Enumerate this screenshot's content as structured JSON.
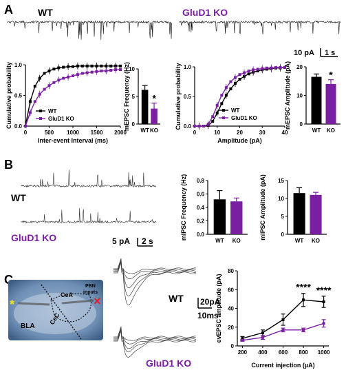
{
  "panels": {
    "A": "A",
    "B": "B",
    "C": "C"
  },
  "colors": {
    "wt": "#000000",
    "ko": "#7b1fa2",
    "trace": "#444444",
    "slice_bg": "#5d7fa8"
  },
  "groups": {
    "wt": "WT",
    "ko": "GluD1 KO"
  },
  "scalebars": {
    "a": {
      "y": "10 pA",
      "x": "1 s"
    },
    "b": {
      "y": "5 pA",
      "x": "2 s"
    },
    "c": {
      "y": "20pA",
      "x": "10ms"
    }
  },
  "slice": {
    "cea": "CeA",
    "pbn": "PBN",
    "inputs": "inputs",
    "cec": "CeC",
    "bla": "BLA"
  },
  "chart_data": [
    {
      "id": "A1",
      "type": "line",
      "xlabel": "Inter-event Interval (ms)",
      "ylabel": "Cumulative probability",
      "xlim": [
        0,
        2000
      ],
      "ylim": [
        0,
        1.0
      ],
      "xticks": [
        0,
        500,
        1000,
        1500,
        2000
      ],
      "yticks": [
        0.0,
        0.5,
        1.0
      ],
      "xtick_labels": [
        "0",
        "500",
        "1000",
        "1500",
        "2000"
      ],
      "ytick_labels": [
        "0.0",
        "0.5",
        "1.0"
      ],
      "legend": [
        "WT",
        "GluD1 KO"
      ],
      "legend_position": "bottom-right",
      "series": [
        {
          "name": "WT",
          "x": [
            0,
            100,
            200,
            300,
            400,
            500,
            600,
            700,
            800,
            900,
            1000,
            1100,
            1200,
            1300,
            1400,
            1500,
            1600,
            1700,
            1800,
            1900,
            2000
          ],
          "y": [
            0,
            0.4,
            0.65,
            0.78,
            0.86,
            0.9,
            0.93,
            0.95,
            0.96,
            0.97,
            0.97,
            0.98,
            0.98,
            0.98,
            0.98,
            0.98,
            0.98,
            0.98,
            0.98,
            0.98,
            0.98
          ]
        },
        {
          "name": "GluD1 KO",
          "x": [
            0,
            100,
            200,
            300,
            400,
            500,
            600,
            700,
            800,
            900,
            1000,
            1100,
            1200,
            1300,
            1400,
            1500,
            1600,
            1700,
            1800,
            1900,
            2000
          ],
          "y": [
            0,
            0.22,
            0.4,
            0.52,
            0.6,
            0.66,
            0.71,
            0.75,
            0.78,
            0.8,
            0.82,
            0.84,
            0.86,
            0.87,
            0.88,
            0.89,
            0.9,
            0.9,
            0.91,
            0.92,
            0.92
          ]
        }
      ]
    },
    {
      "id": "A2",
      "type": "bar",
      "ylabel": "mEPSC Frequency (Hz)",
      "categories": [
        "WT",
        "KO"
      ],
      "values": [
        6.2,
        2.8
      ],
      "errors": [
        0.8,
        1.0
      ],
      "ylim": [
        0,
        10
      ],
      "yticks": [
        0,
        5,
        10
      ],
      "ytick_labels": [
        "0",
        "5",
        "10"
      ],
      "significance": [
        "",
        "*"
      ]
    },
    {
      "id": "A3",
      "type": "line",
      "xlabel": "Amplitude (pA)",
      "ylabel": "Cumulative probability",
      "xlim": [
        0,
        40
      ],
      "ylim": [
        0,
        1.0
      ],
      "xticks": [
        0,
        10,
        20,
        30,
        40
      ],
      "yticks": [
        0.0,
        0.5,
        1.0
      ],
      "xtick_labels": [
        "0",
        "10",
        "20",
        "30",
        "40"
      ],
      "ytick_labels": [
        "0.0",
        "0.5",
        "1.0"
      ],
      "legend": [
        "WT",
        "GluD1 KO"
      ],
      "legend_position": "bottom-right",
      "series": [
        {
          "name": "WT",
          "x": [
            0,
            2,
            4,
            6,
            8,
            10,
            12,
            14,
            16,
            18,
            20,
            22,
            24,
            26,
            28,
            30,
            32,
            34,
            36,
            38,
            40
          ],
          "y": [
            0,
            0,
            0,
            0.01,
            0.08,
            0.22,
            0.38,
            0.52,
            0.63,
            0.72,
            0.79,
            0.84,
            0.88,
            0.91,
            0.93,
            0.95,
            0.96,
            0.97,
            0.98,
            0.98,
            0.99
          ]
        },
        {
          "name": "GluD1 KO",
          "x": [
            0,
            2,
            4,
            6,
            8,
            10,
            12,
            14,
            16,
            18,
            20,
            22,
            24,
            26,
            28,
            30,
            32,
            34,
            36,
            38,
            40
          ],
          "y": [
            0,
            0,
            0,
            0.03,
            0.16,
            0.35,
            0.52,
            0.65,
            0.75,
            0.82,
            0.87,
            0.9,
            0.93,
            0.95,
            0.96,
            0.97,
            0.98,
            0.98,
            0.99,
            0.99,
            0.99
          ]
        }
      ]
    },
    {
      "id": "A4",
      "type": "bar",
      "ylabel": "mEPSC Amplitude (pA)",
      "categories": [
        "WT",
        "KO"
      ],
      "values": [
        16.5,
        14.0
      ],
      "errors": [
        1.0,
        1.5
      ],
      "ylim": [
        0,
        20
      ],
      "yticks": [
        0,
        10,
        20
      ],
      "ytick_labels": [
        "0",
        "10",
        "20"
      ],
      "significance": [
        "",
        "*"
      ]
    },
    {
      "id": "B1",
      "type": "bar",
      "ylabel": "mIPSC Frequency (Hz)",
      "categories": [
        "WT",
        "KO"
      ],
      "values": [
        0.52,
        0.49
      ],
      "errors": [
        0.13,
        0.05
      ],
      "ylim": [
        0,
        0.8
      ],
      "yticks": [
        0.0,
        0.2,
        0.4,
        0.6,
        0.8
      ],
      "ytick_labels": [
        "0.0",
        "0.2",
        "0.4",
        "0.6",
        "0.8"
      ],
      "significance": [
        "",
        ""
      ]
    },
    {
      "id": "B2",
      "type": "bar",
      "ylabel": "mIPSC Amplitude (pA)",
      "categories": [
        "WT",
        "KO"
      ],
      "values": [
        11.5,
        11.0
      ],
      "errors": [
        1.5,
        0.7
      ],
      "ylim": [
        0,
        15
      ],
      "yticks": [
        0,
        5,
        10,
        15
      ],
      "ytick_labels": [
        "0",
        "5",
        "10",
        "15"
      ],
      "significance": [
        "",
        ""
      ]
    },
    {
      "id": "C1",
      "type": "line",
      "xlabel": "Current injection (µA)",
      "ylabel": "evEPSC amplitude (pA)",
      "xlim": [
        150,
        1050
      ],
      "ylim": [
        0,
        80
      ],
      "xticks": [
        200,
        400,
        600,
        800,
        1000
      ],
      "yticks": [
        0,
        20,
        40,
        60,
        80
      ],
      "xtick_labels": [
        "200",
        "400",
        "600",
        "800",
        "1000"
      ],
      "ytick_labels": [
        "0",
        "20",
        "40",
        "60",
        "80"
      ],
      "series": [
        {
          "name": "WT",
          "x": [
            200,
            400,
            600,
            800,
            1000
          ],
          "y": [
            8,
            14,
            28,
            49,
            47
          ],
          "errors": [
            2,
            3,
            6,
            7,
            6
          ]
        },
        {
          "name": "GluD1 KO",
          "x": [
            200,
            400,
            600,
            800,
            1000
          ],
          "y": [
            6,
            9,
            17,
            17,
            24
          ],
          "errors": [
            1,
            2,
            2,
            2,
            4
          ]
        }
      ],
      "significance": [
        {
          "x": 800,
          "text": "****"
        },
        {
          "x": 1000,
          "text": "****"
        }
      ]
    }
  ]
}
